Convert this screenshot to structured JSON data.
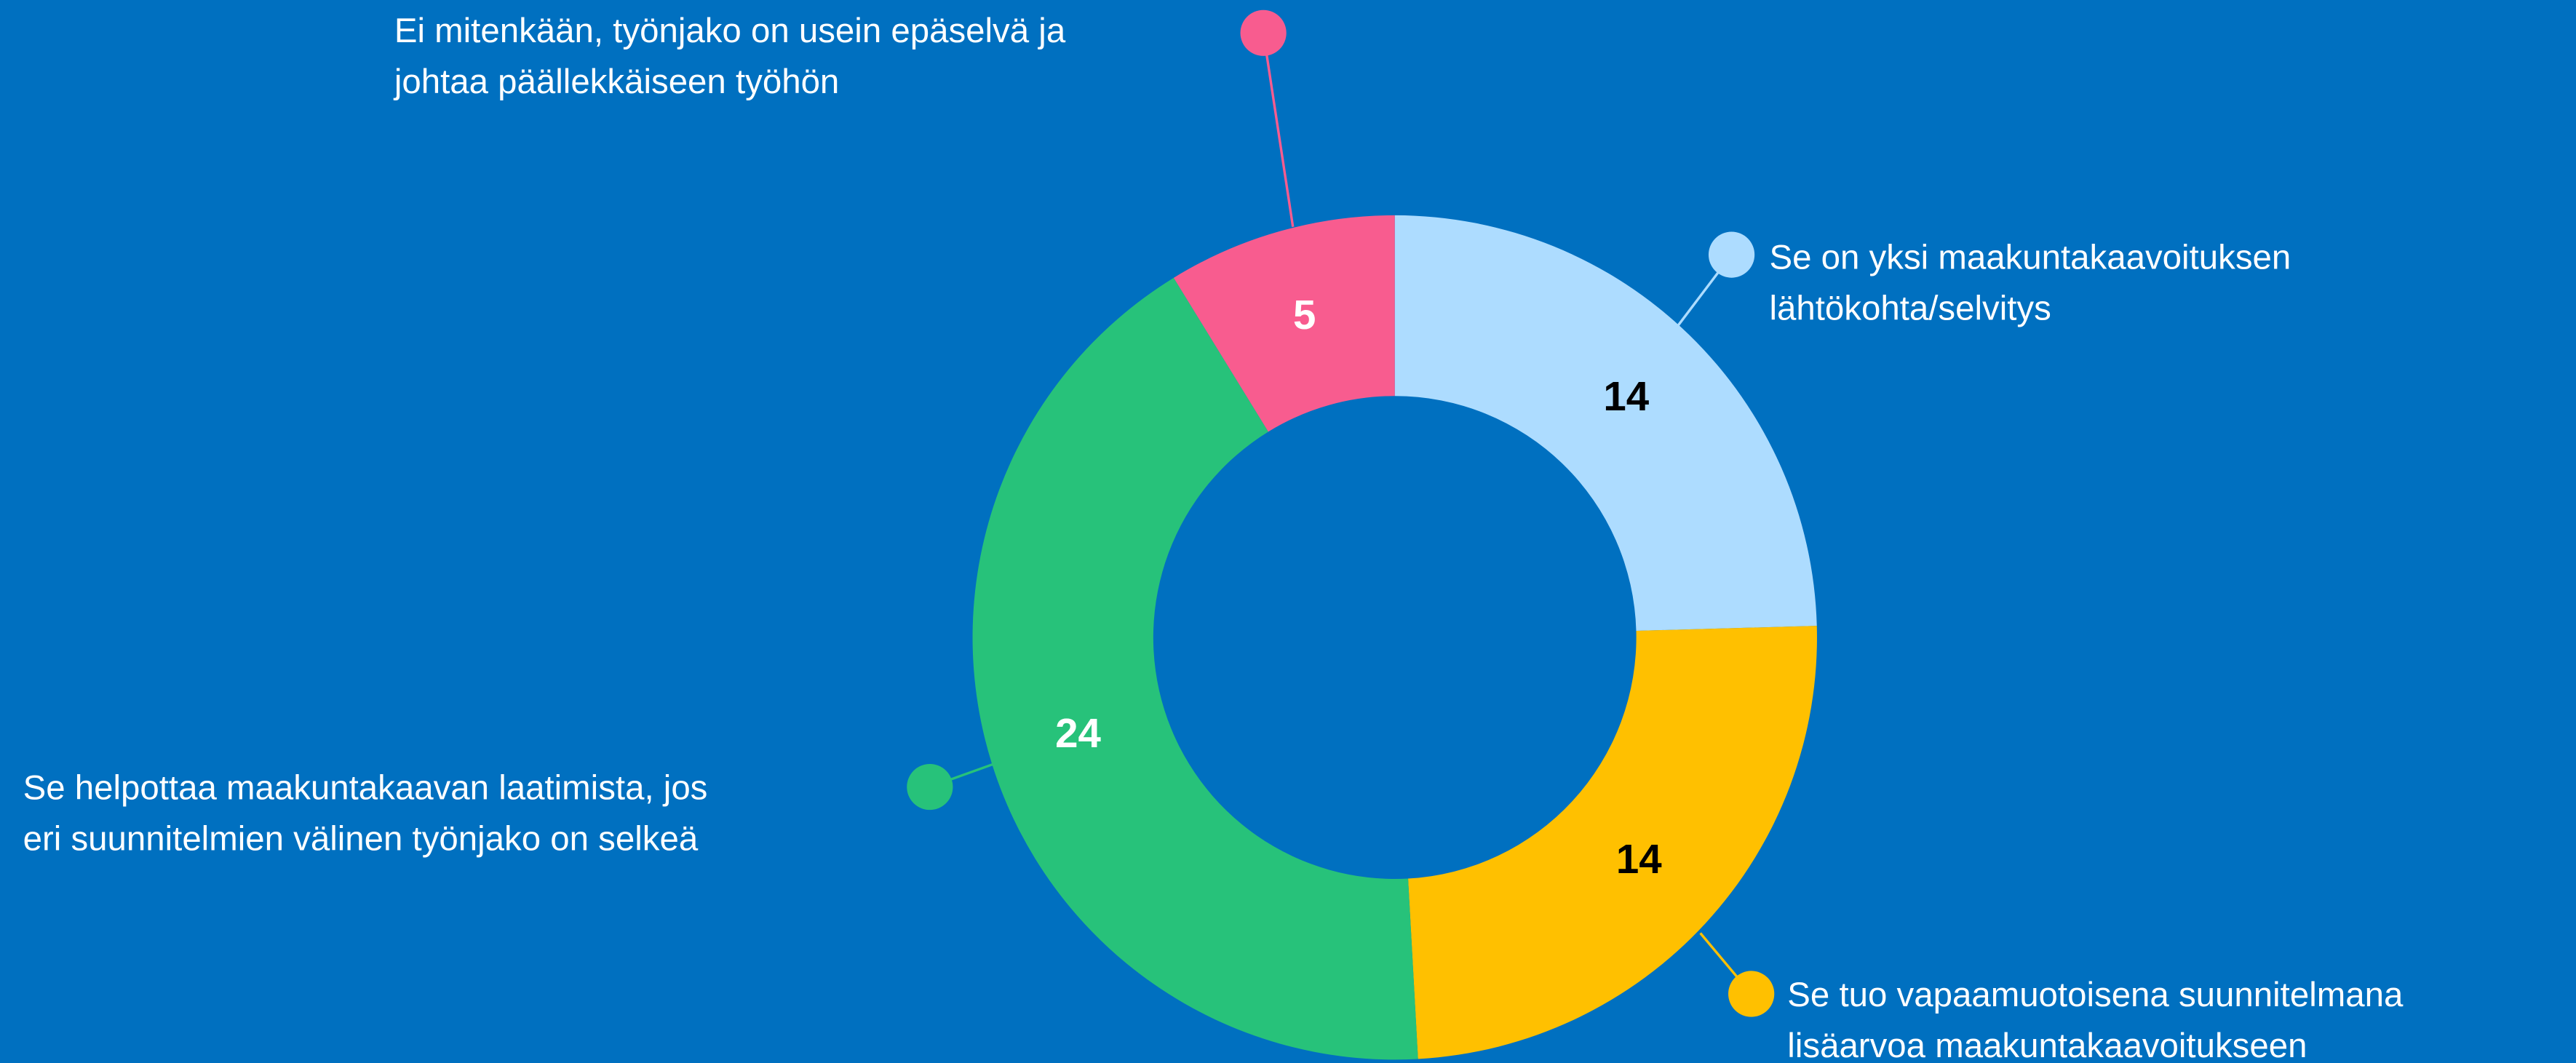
{
  "chart_data": {
    "type": "pie",
    "categories": [
      [
        "Se on yksi maakuntakaavoituksen",
        "lähtökohta/selvitys"
      ],
      [
        "Se tuo vapaamuotoisena suunnitelmana",
        "lisäarvoa maakuntakaavoitukseen"
      ],
      [
        "Se helpottaa maakuntakaavan laatimista, jos",
        "eri suunnitelmien välinen työnjako on selkeä"
      ],
      [
        "Ei mitenkään, työnjako on usein epäselvä ja",
        "johtaa päällekkäiseen työhön"
      ]
    ],
    "values": [
      14,
      14,
      24,
      5
    ],
    "colors": [
      "#addcff",
      "#ffc000",
      "#27c27a",
      "#f85c8f"
    ],
    "value_label_colors": [
      "#000000",
      "#000000",
      "#ffffff",
      "#ffffff"
    ]
  }
}
